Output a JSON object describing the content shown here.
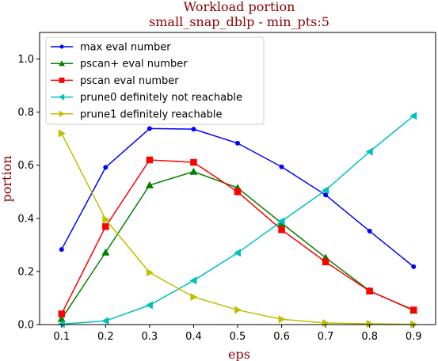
{
  "chart_data": {
    "type": "line",
    "title": "Workload portion",
    "subtitle": "small_snap_dblp - min_pts:5",
    "xlabel": "eps",
    "ylabel": "portion",
    "x": [
      0.1,
      0.2,
      0.3,
      0.4,
      0.5,
      0.6,
      0.7,
      0.8,
      0.9
    ],
    "x_tick_labels": [
      "0.1",
      "0.2",
      "0.3",
      "0.4",
      "0.5",
      "0.6",
      "0.7",
      "0.8",
      "0.9"
    ],
    "y_ticks": [
      0.0,
      0.2,
      0.4,
      0.6,
      0.8,
      1.0
    ],
    "y_tick_labels": [
      "0.0",
      "0.2",
      "0.4",
      "0.6",
      "0.8",
      "1.0"
    ],
    "xlim": [
      0.05,
      0.95
    ],
    "ylim": [
      0.0,
      1.1
    ],
    "grid": false,
    "legend_position": "top-left",
    "series": [
      {
        "name": "max eval number",
        "color": "#0000ff",
        "marker": "circle",
        "values": [
          0.283,
          0.592,
          0.738,
          0.736,
          0.683,
          0.594,
          0.488,
          0.352,
          0.218
        ]
      },
      {
        "name": "pscan+ eval number",
        "color": "#008000",
        "marker": "triangle-up",
        "values": [
          0.022,
          0.272,
          0.525,
          0.576,
          0.515,
          0.382,
          0.252,
          0.127,
          0.053
        ]
      },
      {
        "name": "pscan eval number",
        "color": "#ff0000",
        "marker": "square",
        "values": [
          0.04,
          0.369,
          0.62,
          0.611,
          0.5,
          0.357,
          0.236,
          0.126,
          0.055
        ]
      },
      {
        "name": "prune0 definitely not reachable",
        "color": "#00bfbf",
        "marker": "triangle-left",
        "values": [
          0.002,
          0.014,
          0.073,
          0.166,
          0.27,
          0.389,
          0.506,
          0.651,
          0.786
        ]
      },
      {
        "name": "prune1 definitely reachable",
        "color": "#bfbf00",
        "marker": "triangle-right",
        "values": [
          0.72,
          0.396,
          0.196,
          0.104,
          0.055,
          0.02,
          0.006,
          0.003,
          0.001
        ]
      }
    ]
  }
}
